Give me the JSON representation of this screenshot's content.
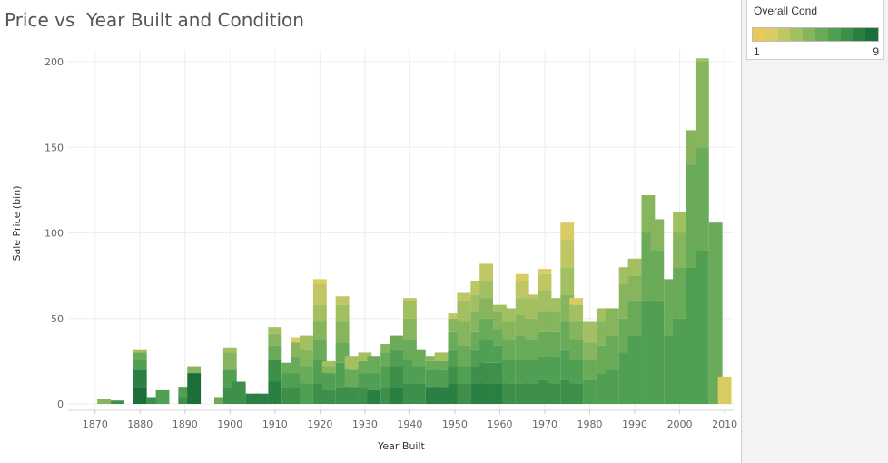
{
  "chart_data": {
    "type": "bar",
    "title": "Price vs  Year Built and Condition",
    "xlabel": "Year Built",
    "ylabel": "Sale Price (bin)",
    "xlim": [
      1864,
      2012
    ],
    "ylim": [
      -3,
      206
    ],
    "x_ticks": [
      1870,
      1880,
      1890,
      1900,
      1910,
      1920,
      1930,
      1940,
      1950,
      1960,
      1970,
      1980,
      1990,
      2000,
      2010
    ],
    "y_ticks": [
      0,
      50,
      100,
      150,
      200
    ],
    "grid": true,
    "stacked": true,
    "bar_width_years": 3,
    "legend": {
      "title": "Overall Cond",
      "min_label": "1",
      "max_label": "9",
      "position": "top-right"
    },
    "color_ramp": [
      "#e9c85c",
      "#d8cc62",
      "#bfc664",
      "#a2bf62",
      "#86b55e",
      "#6aab59",
      "#519f53",
      "#3d8f4a",
      "#2a7f42",
      "#1c6f39"
    ],
    "stacks": [
      {
        "x": 1872,
        "segments": [
          [
            4,
            3
          ]
        ]
      },
      {
        "x": 1875,
        "segments": [
          [
            7,
            2
          ]
        ]
      },
      {
        "x": 1880,
        "segments": [
          [
            9,
            10
          ],
          [
            8,
            10
          ],
          [
            6,
            6
          ],
          [
            5,
            4
          ],
          [
            3,
            2
          ]
        ]
      },
      {
        "x": 1883,
        "segments": [
          [
            7,
            4
          ]
        ]
      },
      {
        "x": 1885,
        "segments": [
          [
            6,
            8
          ]
        ]
      },
      {
        "x": 1890,
        "segments": [
          [
            7,
            4
          ],
          [
            6,
            6
          ]
        ]
      },
      {
        "x": 1892,
        "segments": [
          [
            9,
            18
          ],
          [
            4,
            4
          ]
        ]
      },
      {
        "x": 1898,
        "segments": [
          [
            5,
            4
          ]
        ]
      },
      {
        "x": 1900,
        "segments": [
          [
            7,
            10
          ],
          [
            6,
            10
          ],
          [
            4,
            10
          ],
          [
            3,
            3
          ]
        ]
      },
      {
        "x": 1902,
        "segments": [
          [
            7,
            13
          ]
        ]
      },
      {
        "x": 1905,
        "segments": [
          [
            8,
            6
          ]
        ]
      },
      {
        "x": 1907,
        "segments": [
          [
            8,
            6
          ]
        ]
      },
      {
        "x": 1910,
        "segments": [
          [
            8,
            13
          ],
          [
            7,
            13
          ],
          [
            5,
            8
          ],
          [
            4,
            7
          ],
          [
            3,
            4
          ]
        ]
      },
      {
        "x": 1913,
        "segments": [
          [
            7,
            10
          ],
          [
            6,
            8
          ],
          [
            5,
            6
          ]
        ]
      },
      {
        "x": 1915,
        "segments": [
          [
            7,
            10
          ],
          [
            6,
            8
          ],
          [
            5,
            10
          ],
          [
            4,
            8
          ],
          [
            1,
            3
          ]
        ]
      },
      {
        "x": 1917,
        "segments": [
          [
            6,
            12
          ],
          [
            5,
            10
          ],
          [
            4,
            10
          ],
          [
            3,
            8
          ]
        ]
      },
      {
        "x": 1920,
        "segments": [
          [
            7,
            12
          ],
          [
            6,
            14
          ],
          [
            5,
            12
          ],
          [
            4,
            10
          ],
          [
            3,
            10
          ],
          [
            2,
            12
          ],
          [
            1,
            3
          ]
        ]
      },
      {
        "x": 1922,
        "segments": [
          [
            7,
            8
          ],
          [
            6,
            10
          ],
          [
            4,
            4
          ],
          [
            3,
            3
          ]
        ]
      },
      {
        "x": 1925,
        "segments": [
          [
            7,
            10
          ],
          [
            6,
            14
          ],
          [
            5,
            12
          ],
          [
            4,
            12
          ],
          [
            3,
            10
          ],
          [
            2,
            5
          ]
        ]
      },
      {
        "x": 1927,
        "segments": [
          [
            7,
            10
          ],
          [
            5,
            10
          ],
          [
            3,
            8
          ]
        ]
      },
      {
        "x": 1930,
        "segments": [
          [
            7,
            10
          ],
          [
            6,
            8
          ],
          [
            5,
            7
          ],
          [
            3,
            5
          ]
        ]
      },
      {
        "x": 1932,
        "segments": [
          [
            8,
            8
          ],
          [
            6,
            10
          ],
          [
            5,
            10
          ]
        ]
      },
      {
        "x": 1935,
        "segments": [
          [
            7,
            10
          ],
          [
            6,
            12
          ],
          [
            5,
            8
          ],
          [
            4,
            5
          ]
        ]
      },
      {
        "x": 1937,
        "segments": [
          [
            8,
            10
          ],
          [
            7,
            12
          ],
          [
            6,
            10
          ],
          [
            5,
            8
          ]
        ]
      },
      {
        "x": 1940,
        "segments": [
          [
            7,
            12
          ],
          [
            6,
            14
          ],
          [
            5,
            12
          ],
          [
            4,
            12
          ],
          [
            3,
            10
          ],
          [
            2,
            2
          ]
        ]
      },
      {
        "x": 1942,
        "segments": [
          [
            7,
            12
          ],
          [
            6,
            10
          ],
          [
            5,
            10
          ]
        ]
      },
      {
        "x": 1945,
        "segments": [
          [
            8,
            10
          ],
          [
            6,
            10
          ],
          [
            5,
            5
          ],
          [
            4,
            3
          ]
        ]
      },
      {
        "x": 1947,
        "segments": [
          [
            8,
            10
          ],
          [
            6,
            10
          ],
          [
            5,
            5
          ],
          [
            3,
            5
          ]
        ]
      },
      {
        "x": 1950,
        "segments": [
          [
            8,
            12
          ],
          [
            7,
            10
          ],
          [
            6,
            10
          ],
          [
            5,
            10
          ],
          [
            4,
            8
          ],
          [
            2,
            3
          ]
        ]
      },
      {
        "x": 1952,
        "segments": [
          [
            7,
            12
          ],
          [
            6,
            10
          ],
          [
            5,
            12
          ],
          [
            4,
            14
          ],
          [
            3,
            12
          ],
          [
            2,
            5
          ]
        ]
      },
      {
        "x": 1955,
        "segments": [
          [
            8,
            12
          ],
          [
            7,
            10
          ],
          [
            6,
            10
          ],
          [
            5,
            10
          ],
          [
            4,
            12
          ],
          [
            3,
            10
          ],
          [
            2,
            8
          ]
        ]
      },
      {
        "x": 1957,
        "segments": [
          [
            8,
            12
          ],
          [
            7,
            12
          ],
          [
            6,
            14
          ],
          [
            5,
            12
          ],
          [
            4,
            12
          ],
          [
            3,
            10
          ],
          [
            2,
            10
          ]
        ]
      },
      {
        "x": 1960,
        "segments": [
          [
            8,
            12
          ],
          [
            7,
            12
          ],
          [
            6,
            10
          ],
          [
            5,
            10
          ],
          [
            4,
            10
          ],
          [
            3,
            4
          ]
        ]
      },
      {
        "x": 1962,
        "segments": [
          [
            7,
            12
          ],
          [
            6,
            14
          ],
          [
            5,
            12
          ],
          [
            4,
            10
          ],
          [
            3,
            8
          ]
        ]
      },
      {
        "x": 1965,
        "segments": [
          [
            7,
            12
          ],
          [
            6,
            14
          ],
          [
            5,
            14
          ],
          [
            4,
            12
          ],
          [
            3,
            10
          ],
          [
            2,
            10
          ],
          [
            1,
            4
          ]
        ]
      },
      {
        "x": 1967,
        "segments": [
          [
            7,
            12
          ],
          [
            6,
            14
          ],
          [
            5,
            12
          ],
          [
            4,
            12
          ],
          [
            3,
            12
          ],
          [
            2,
            2
          ]
        ]
      },
      {
        "x": 1970,
        "segments": [
          [
            7,
            14
          ],
          [
            6,
            14
          ],
          [
            5,
            14
          ],
          [
            4,
            12
          ],
          [
            3,
            12
          ],
          [
            2,
            10
          ],
          [
            1,
            3
          ]
        ]
      },
      {
        "x": 1972,
        "segments": [
          [
            7,
            12
          ],
          [
            6,
            16
          ],
          [
            5,
            14
          ],
          [
            4,
            12
          ],
          [
            3,
            8
          ]
        ]
      },
      {
        "x": 1975,
        "segments": [
          [
            7,
            14
          ],
          [
            6,
            18
          ],
          [
            5,
            16
          ],
          [
            4,
            16
          ],
          [
            3,
            16
          ],
          [
            2,
            16
          ],
          [
            1,
            10
          ]
        ]
      },
      {
        "x": 1977,
        "segments": [
          [
            7,
            12
          ],
          [
            6,
            14
          ],
          [
            5,
            12
          ],
          [
            4,
            10
          ],
          [
            3,
            10
          ],
          [
            1,
            4
          ]
        ]
      },
      {
        "x": 1980,
        "segments": [
          [
            6,
            14
          ],
          [
            5,
            12
          ],
          [
            4,
            10
          ],
          [
            3,
            12
          ]
        ]
      },
      {
        "x": 1983,
        "segments": [
          [
            6,
            18
          ],
          [
            5,
            16
          ],
          [
            4,
            14
          ],
          [
            3,
            8
          ]
        ]
      },
      {
        "x": 1985,
        "segments": [
          [
            6,
            20
          ],
          [
            5,
            20
          ],
          [
            4,
            16
          ]
        ]
      },
      {
        "x": 1988,
        "segments": [
          [
            6,
            30
          ],
          [
            5,
            20
          ],
          [
            4,
            20
          ],
          [
            3,
            10
          ]
        ]
      },
      {
        "x": 1990,
        "segments": [
          [
            6,
            40
          ],
          [
            5,
            20
          ],
          [
            4,
            15
          ],
          [
            3,
            10
          ]
        ]
      },
      {
        "x": 1993,
        "segments": [
          [
            6,
            60
          ],
          [
            5,
            40
          ],
          [
            4,
            22
          ]
        ]
      },
      {
        "x": 1995,
        "segments": [
          [
            6,
            60
          ],
          [
            5,
            30
          ],
          [
            4,
            18
          ]
        ]
      },
      {
        "x": 1998,
        "segments": [
          [
            6,
            40
          ],
          [
            5,
            33
          ]
        ]
      },
      {
        "x": 2000,
        "segments": [
          [
            6,
            50
          ],
          [
            5,
            30
          ],
          [
            4,
            20
          ],
          [
            3,
            12
          ]
        ]
      },
      {
        "x": 2003,
        "segments": [
          [
            6,
            80
          ],
          [
            5,
            60
          ],
          [
            4,
            20
          ]
        ]
      },
      {
        "x": 2005,
        "segments": [
          [
            6,
            90
          ],
          [
            5,
            60
          ],
          [
            4,
            50
          ],
          [
            3,
            2
          ]
        ]
      },
      {
        "x": 2008,
        "segments": [
          [
            5,
            106
          ]
        ]
      },
      {
        "x": 2010,
        "segments": [
          [
            1,
            16
          ]
        ]
      }
    ]
  }
}
